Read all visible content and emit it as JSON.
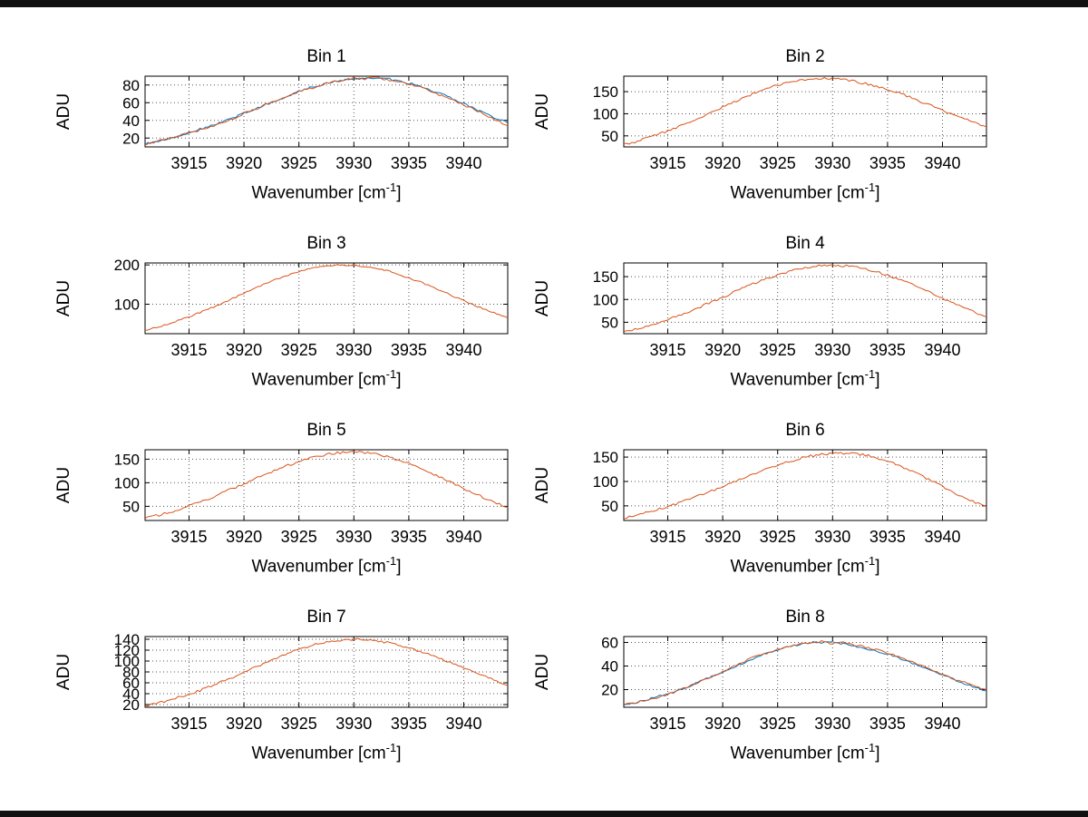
{
  "figure": {
    "background": "#ffffff"
  },
  "axis": {
    "ylabel": "ADU",
    "xlabel_pre": "Wavenumber [cm",
    "xlabel_sup": "-1",
    "xlabel_post": "]",
    "x_start": 3911,
    "x_step": 1
  },
  "colors": {
    "blue": "#0072BD",
    "orange": "#D95319",
    "grid": "#555555",
    "axis": "#000000"
  },
  "chart_data": [
    {
      "type": "line",
      "title": "Bin 1",
      "xlabel": "Wavenumber [cm-1]",
      "ylabel": "ADU",
      "xlim": [
        3911,
        3944
      ],
      "xticks": [
        3915,
        3920,
        3925,
        3930,
        3935,
        3940
      ],
      "ylim": [
        10,
        90
      ],
      "yticks": [
        20,
        40,
        60,
        80
      ],
      "grid": true,
      "series": [
        {
          "name": "blue",
          "color": "#0072BD",
          "noise": 1.2,
          "values": [
            13,
            16,
            19,
            22,
            26,
            30,
            34,
            38,
            43,
            48,
            53,
            58,
            63,
            68,
            73,
            77,
            80,
            83,
            86,
            87,
            88,
            88,
            87,
            85,
            82,
            79,
            74,
            70,
            64,
            59,
            53,
            48,
            42,
            37
          ]
        },
        {
          "name": "orange",
          "color": "#D95319",
          "noise": 1.2,
          "values": [
            13,
            16,
            19,
            22,
            26,
            29,
            33,
            38,
            42,
            48,
            52,
            58,
            63,
            67,
            72,
            76,
            80,
            84,
            85,
            88,
            87,
            89,
            86,
            84,
            81,
            78,
            73,
            68,
            63,
            57,
            52,
            46,
            40,
            34
          ]
        }
      ]
    },
    {
      "type": "line",
      "title": "Bin 2",
      "xlabel": "Wavenumber [cm-1]",
      "ylabel": "ADU",
      "xlim": [
        3911,
        3944
      ],
      "xticks": [
        3915,
        3920,
        3925,
        3930,
        3935,
        3940
      ],
      "ylim": [
        25,
        185
      ],
      "yticks": [
        50,
        100,
        150
      ],
      "grid": true,
      "series": [
        {
          "name": "orange",
          "color": "#D95319",
          "noise": 2.5,
          "values": [
            30,
            36,
            44,
            52,
            61,
            71,
            81,
            92,
            104,
            115,
            126,
            137,
            148,
            157,
            165,
            171,
            176,
            179,
            180,
            179,
            177,
            173,
            168,
            162,
            155,
            147,
            138,
            128,
            118,
            108,
            98,
            89,
            79,
            70
          ]
        }
      ]
    },
    {
      "type": "line",
      "title": "Bin 3",
      "xlabel": "Wavenumber [cm-1]",
      "ylabel": "ADU",
      "xlim": [
        3911,
        3944
      ],
      "xticks": [
        3915,
        3920,
        3925,
        3930,
        3935,
        3940
      ],
      "ylim": [
        25,
        205
      ],
      "yticks": [
        100,
        200
      ],
      "grid": true,
      "series": [
        {
          "name": "orange",
          "color": "#D95319",
          "noise": 2.0,
          "values": [
            33,
            41,
            49,
            58,
            68,
            79,
            90,
            102,
            115,
            128,
            140,
            153,
            164,
            174,
            183,
            190,
            196,
            199,
            200,
            199,
            196,
            191,
            185,
            177,
            167,
            157,
            145,
            133,
            121,
            109,
            97,
            86,
            75,
            65
          ]
        }
      ]
    },
    {
      "type": "line",
      "title": "Bin 4",
      "xlabel": "Wavenumber [cm-1]",
      "ylabel": "ADU",
      "xlim": [
        3911,
        3944
      ],
      "xticks": [
        3915,
        3920,
        3925,
        3930,
        3935,
        3940
      ],
      "ylim": [
        25,
        180
      ],
      "yticks": [
        50,
        100,
        150
      ],
      "grid": true,
      "series": [
        {
          "name": "orange",
          "color": "#D95319",
          "noise": 2.5,
          "values": [
            28,
            34,
            40,
            48,
            56,
            65,
            74,
            84,
            95,
            105,
            116,
            127,
            137,
            146,
            154,
            161,
            167,
            172,
            174,
            175,
            174,
            171,
            167,
            161,
            153,
            145,
            135,
            125,
            114,
            103,
            92,
            82,
            72,
            62
          ]
        }
      ]
    },
    {
      "type": "line",
      "title": "Bin 5",
      "xlabel": "Wavenumber [cm-1]",
      "ylabel": "ADU",
      "xlim": [
        3911,
        3944
      ],
      "xticks": [
        3915,
        3920,
        3925,
        3930,
        3935,
        3940
      ],
      "ylim": [
        20,
        170
      ],
      "yticks": [
        50,
        100,
        150
      ],
      "grid": true,
      "series": [
        {
          "name": "orange",
          "color": "#D95319",
          "noise": 2.5,
          "values": [
            25,
            30,
            36,
            43,
            51,
            59,
            68,
            78,
            88,
            98,
            108,
            118,
            128,
            137,
            145,
            152,
            157,
            162,
            164,
            165,
            164,
            161,
            156,
            149,
            141,
            132,
            121,
            110,
            99,
            88,
            77,
            67,
            57,
            48
          ]
        }
      ]
    },
    {
      "type": "line",
      "title": "Bin 6",
      "xlabel": "Wavenumber [cm-1]",
      "ylabel": "ADU",
      "xlim": [
        3911,
        3944
      ],
      "xticks": [
        3915,
        3920,
        3925,
        3930,
        3935,
        3940
      ],
      "ylim": [
        20,
        165
      ],
      "yticks": [
        50,
        100,
        150
      ],
      "grid": true,
      "series": [
        {
          "name": "orange",
          "color": "#D95319",
          "noise": 2.5,
          "values": [
            25,
            30,
            36,
            42,
            49,
            56,
            64,
            73,
            81,
            90,
            100,
            109,
            118,
            126,
            134,
            141,
            147,
            152,
            155,
            157,
            158,
            157,
            154,
            148,
            141,
            133,
            123,
            112,
            101,
            89,
            78,
            67,
            57,
            48
          ]
        }
      ]
    },
    {
      "type": "line",
      "title": "Bin 7",
      "xlabel": "Wavenumber [cm-1]",
      "ylabel": "ADU",
      "xlim": [
        3911,
        3944
      ],
      "xticks": [
        3915,
        3920,
        3925,
        3930,
        3935,
        3940
      ],
      "ylim": [
        15,
        145
      ],
      "yticks": [
        20,
        40,
        60,
        80,
        100,
        120,
        140
      ],
      "grid": true,
      "series": [
        {
          "name": "orange",
          "color": "#D95319",
          "noise": 2.0,
          "values": [
            18,
            22,
            27,
            33,
            39,
            46,
            54,
            62,
            70,
            79,
            88,
            97,
            106,
            114,
            122,
            128,
            133,
            137,
            139,
            140,
            139,
            137,
            134,
            130,
            124,
            118,
            111,
            103,
            95,
            87,
            79,
            71,
            63,
            55
          ]
        }
      ]
    },
    {
      "type": "line",
      "title": "Bin 8",
      "xlabel": "Wavenumber [cm-1]",
      "ylabel": "ADU",
      "xlim": [
        3911,
        3944
      ],
      "xticks": [
        3915,
        3920,
        3925,
        3930,
        3935,
        3940
      ],
      "ylim": [
        5,
        65
      ],
      "yticks": [
        20,
        40,
        60
      ],
      "grid": true,
      "series": [
        {
          "name": "blue",
          "color": "#0072BD",
          "noise": 0.8,
          "values": [
            7,
            9,
            11,
            14,
            16,
            20,
            23,
            27,
            31,
            35,
            39,
            43,
            47,
            51,
            54,
            57,
            58,
            60,
            60,
            60,
            59,
            57,
            55,
            53,
            50,
            47,
            43,
            40,
            36,
            32,
            29,
            25,
            22,
            19
          ]
        },
        {
          "name": "orange",
          "color": "#D95319",
          "noise": 0.8,
          "values": [
            7,
            9,
            11,
            13,
            16,
            19,
            23,
            27,
            31,
            35,
            40,
            44,
            48,
            51,
            54,
            56,
            59,
            59,
            61,
            59,
            60,
            58,
            56,
            54,
            51,
            48,
            44,
            41,
            37,
            33,
            29,
            26,
            23,
            20
          ]
        }
      ]
    }
  ]
}
